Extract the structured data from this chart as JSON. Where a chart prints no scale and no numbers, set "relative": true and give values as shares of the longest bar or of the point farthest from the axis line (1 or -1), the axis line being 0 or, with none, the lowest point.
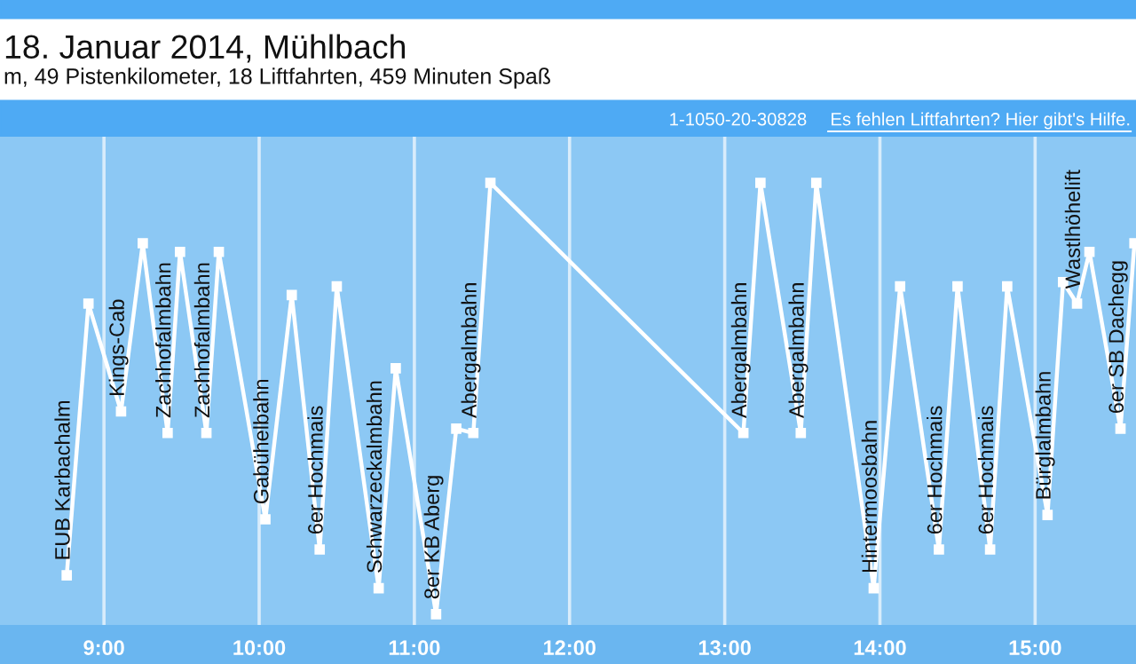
{
  "chart_data": {
    "type": "line",
    "title": "18. Januar 2014, Mühlbach",
    "subtitle": "m, 49 Pistenkilometer, 18 Liftfahrten, 459 Minuten Spaß",
    "x": [
      8.76,
      8.9,
      9.11,
      9.25,
      9.41,
      9.49,
      9.66,
      9.74,
      10.04,
      10.21,
      10.39,
      10.5,
      10.77,
      10.88,
      11.14,
      11.27,
      11.38,
      11.49,
      13.12,
      13.23,
      13.49,
      13.59,
      13.96,
      14.13,
      14.38,
      14.5,
      14.71,
      14.82,
      15.08,
      15.18,
      15.27,
      15.35,
      15.55,
      15.64
    ],
    "values": [
      0.09,
      0.72,
      0.47,
      0.86,
      0.42,
      0.84,
      0.42,
      0.84,
      0.22,
      0.74,
      0.15,
      0.76,
      0.06,
      0.57,
      0,
      0.43,
      0.42,
      1,
      0.42,
      1,
      0.42,
      1,
      0.06,
      0.76,
      0.15,
      0.76,
      0.15,
      0.76,
      0.23,
      0.77,
      0.72,
      0.84,
      0.43,
      0.86
    ],
    "relative": true,
    "color": "#ffffff",
    "marker": "square",
    "line_style": "solid",
    "grid": "x",
    "xlim": [
      8.33,
      15.65
    ],
    "xticks": [
      {
        "value": 9,
        "label": "9:00"
      },
      {
        "value": 10,
        "label": "10:00"
      },
      {
        "value": 11,
        "label": "11:00"
      },
      {
        "value": 12,
        "label": "12:00"
      },
      {
        "value": 13,
        "label": "13:00"
      },
      {
        "value": 14,
        "label": "14:00"
      },
      {
        "value": 15,
        "label": "15:00"
      }
    ],
    "annotations": [
      {
        "text": "EUB Karbachalm",
        "x": 8.76,
        "y": 0.09
      },
      {
        "text": "Kings-Cab",
        "x": 9.11,
        "y": 0.47
      },
      {
        "text": "Zachhofalmbahn",
        "x": 9.41,
        "y": 0.42
      },
      {
        "text": "Zachhofalmbahn",
        "x": 9.66,
        "y": 0.42
      },
      {
        "text": "Gabühelbahn",
        "x": 10.04,
        "y": 0.22
      },
      {
        "text": "6er Hochmais",
        "x": 10.39,
        "y": 0.15
      },
      {
        "text": "Schwarzeckalmbahn",
        "x": 10.77,
        "y": 0.06
      },
      {
        "text": "8er KB Aberg",
        "x": 11.14,
        "y": 0
      },
      {
        "text": "Abergalmbahn",
        "x": 11.38,
        "y": 0.42
      },
      {
        "text": "Abergalmbahn",
        "x": 13.12,
        "y": 0.42
      },
      {
        "text": "Abergalmbahn",
        "x": 13.49,
        "y": 0.42
      },
      {
        "text": "Hintermoosbahn",
        "x": 13.96,
        "y": 0.06
      },
      {
        "text": "6er Hochmais",
        "x": 14.38,
        "y": 0.15
      },
      {
        "text": "6er Hochmais",
        "x": 14.71,
        "y": 0.15
      },
      {
        "text": "Bürglalmbahn",
        "x": 15.08,
        "y": 0.23
      },
      {
        "text": "Wastlhöhelift",
        "x": 15.27,
        "y": 0.72
      },
      {
        "text": "6er SB Dachegg",
        "x": 15.55,
        "y": 0.43
      },
      "1-1050-20-30828",
      "Es fehlen Liftfahrten? Hier gibt's Hilfe."
    ]
  }
}
